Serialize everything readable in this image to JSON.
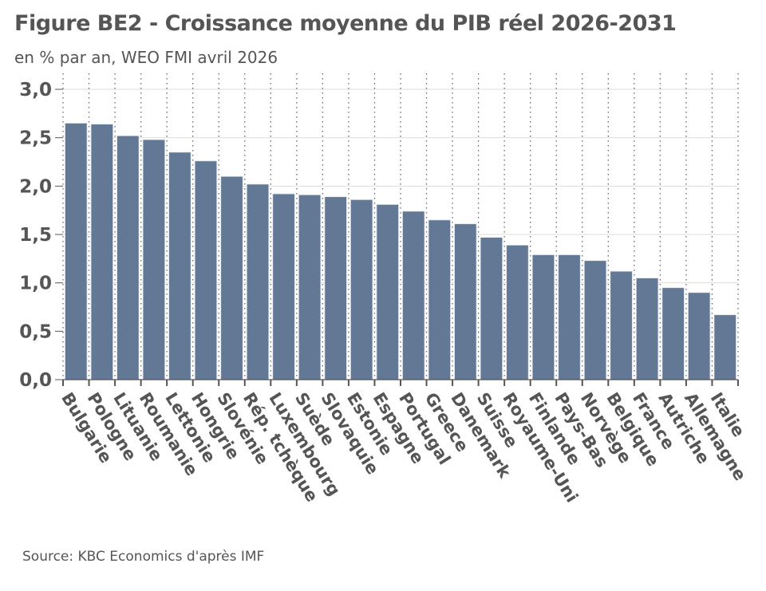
{
  "chart_data": {
    "type": "bar",
    "title": "Figure BE2 - Croissance moyenne du PIB réel 2026-2031",
    "subtitle": "en % par an, WEO FMI avril 2026",
    "source": "Source: KBC Economics d'après IMF",
    "xlabel": "",
    "ylabel": "",
    "ylim": [
      0,
      3
    ],
    "yticks": [
      "0,0",
      "0,5",
      "1,0",
      "1,5",
      "2,0",
      "2,5",
      "3,0"
    ],
    "categories": [
      "Bulgarie",
      "Pologne",
      "Lituanie",
      "Roumanie",
      "Lettonie",
      "Hongrie",
      "Slovénie",
      "Rép. tchèque",
      "Luxembourg",
      "Suède",
      "Slovaquie",
      "Estonie",
      "Espagne",
      "Portugal",
      "Greece",
      "Danemark",
      "Suisse",
      "Royaume-Uni",
      "Finlande",
      "Pays-Bas",
      "Norvège",
      "Belgique",
      "France",
      "Autriche",
      "Allemagne",
      "Italie"
    ],
    "values": [
      2.65,
      2.64,
      2.52,
      2.48,
      2.35,
      2.26,
      2.1,
      2.02,
      1.92,
      1.91,
      1.89,
      1.86,
      1.81,
      1.74,
      1.65,
      1.61,
      1.47,
      1.39,
      1.29,
      1.29,
      1.23,
      1.12,
      1.05,
      0.95,
      0.9,
      0.67
    ],
    "bar_color": "#637894",
    "grid": true
  }
}
